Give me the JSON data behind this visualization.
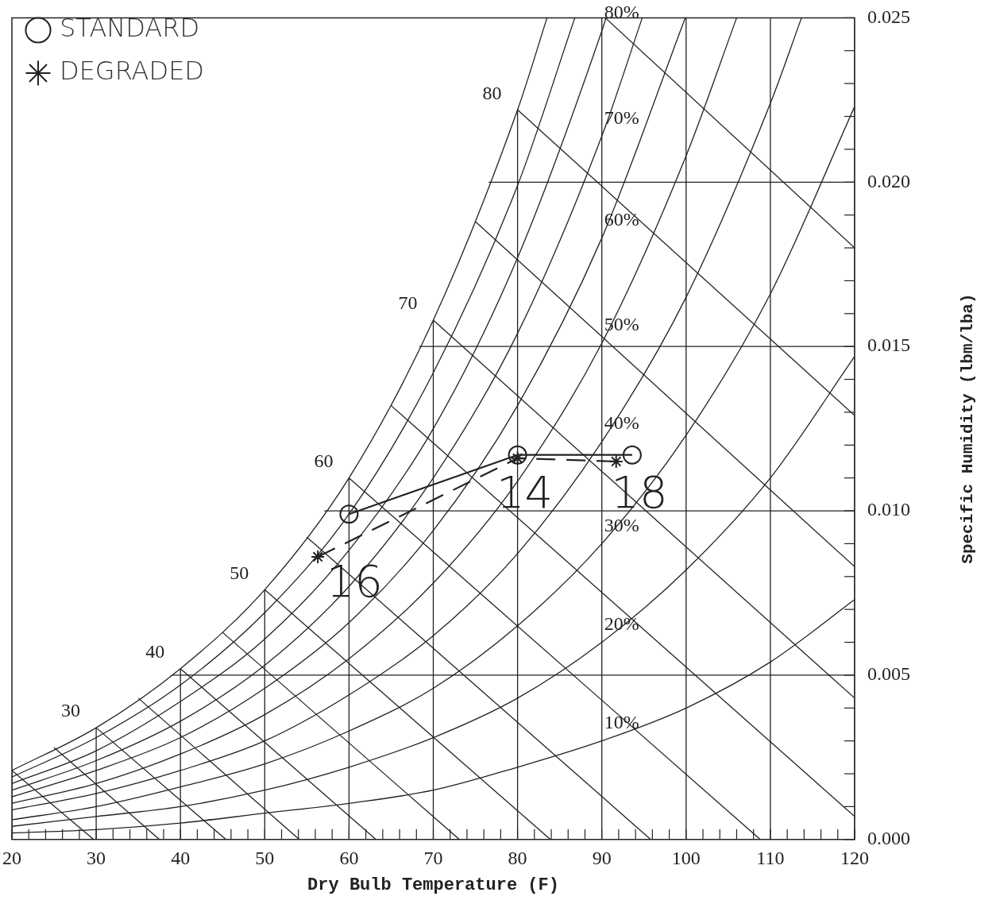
{
  "chart_data": {
    "type": "line",
    "xlabel": "Dry Bulb Temperature (F)",
    "ylabel": "Specific Humidity (lbm/lba)",
    "xlim": [
      20,
      120
    ],
    "ylim": [
      0,
      0.025
    ],
    "xticks": [
      20,
      {
        "value": 22,
        "label": null
      },
      {
        "value": 24,
        "label": null
      },
      {
        "value": 26,
        "label": null
      },
      {
        "value": 28,
        "label": null
      },
      30,
      {
        "value": 32,
        "label": null
      },
      {
        "value": 34,
        "label": null
      },
      {
        "value": 36,
        "label": null
      },
      {
        "value": 38,
        "label": null
      },
      40,
      {
        "value": 42,
        "label": null
      },
      {
        "value": 44,
        "label": null
      },
      {
        "value": 46,
        "label": null
      },
      {
        "value": 48,
        "label": null
      },
      50,
      {
        "value": 52,
        "label": null
      },
      {
        "value": 54,
        "label": null
      },
      {
        "value": 56,
        "label": null
      },
      {
        "value": 58,
        "label": null
      },
      60,
      {
        "value": 62,
        "label": null
      },
      {
        "value": 64,
        "label": null
      },
      {
        "value": 66,
        "label": null
      },
      {
        "value": 68,
        "label": null
      },
      70,
      {
        "value": 72,
        "label": null
      },
      {
        "value": 74,
        "label": null
      },
      {
        "value": 76,
        "label": null
      },
      {
        "value": 78,
        "label": null
      },
      80,
      {
        "value": 82,
        "label": null
      },
      {
        "value": 84,
        "label": null
      },
      {
        "value": 86,
        "label": null
      },
      {
        "value": 88,
        "label": null
      },
      90,
      {
        "value": 92,
        "label": null
      },
      {
        "value": 94,
        "label": null
      },
      {
        "value": 96,
        "label": null
      },
      {
        "value": 98,
        "label": null
      },
      100,
      {
        "value": 102,
        "label": null
      },
      {
        "value": 104,
        "label": null
      },
      {
        "value": 106,
        "label": null
      },
      {
        "value": 108,
        "label": null
      },
      110,
      {
        "value": 112,
        "label": null
      },
      {
        "value": 114,
        "label": null
      },
      {
        "value": 116,
        "label": null
      },
      {
        "value": 118,
        "label": null
      },
      120
    ],
    "yticks": [
      {
        "value": 0,
        "label": "0.000"
      },
      {
        "value": 0.001,
        "label": null
      },
      {
        "value": 0.002,
        "label": null
      },
      {
        "value": 0.003,
        "label": null
      },
      {
        "value": 0.004,
        "label": null
      },
      {
        "value": 0.005,
        "label": "0.005"
      },
      {
        "value": 0.006,
        "label": null
      },
      {
        "value": 0.007,
        "label": null
      },
      {
        "value": 0.008,
        "label": null
      },
      {
        "value": 0.009,
        "label": null
      },
      {
        "value": 0.01,
        "label": "0.010"
      },
      {
        "value": 0.011,
        "label": null
      },
      {
        "value": 0.012,
        "label": null
      },
      {
        "value": 0.013,
        "label": null
      },
      {
        "value": 0.014,
        "label": null
      },
      {
        "value": 0.015,
        "label": "0.015"
      },
      {
        "value": 0.016,
        "label": null
      },
      {
        "value": 0.017,
        "label": null
      },
      {
        "value": 0.018,
        "label": null
      },
      {
        "value": 0.019,
        "label": null
      },
      {
        "value": 0.02,
        "label": "0.020"
      },
      {
        "value": 0.021,
        "label": null
      },
      {
        "value": 0.022,
        "label": null
      },
      {
        "value": 0.023,
        "label": null
      },
      {
        "value": 0.024,
        "label": null
      },
      {
        "value": 0.025,
        "label": "0.025"
      }
    ],
    "grid": true,
    "legend": "top left",
    "marker": "none",
    "line_style": "solid",
    "series": [
      {
        "color": "#222222",
        "x": [
          20,
          30,
          40,
          50,
          60,
          70,
          80,
          83.5
        ],
        "values": [
          0.0021,
          0.0034,
          0.0052,
          0.0076,
          0.011,
          0.0158,
          0.0222,
          0.025
        ]
      },
      {
        "color": "#222222",
        "x": [
          20,
          30,
          40,
          50,
          60,
          70,
          80,
          86.8
        ],
        "values": [
          0.0019,
          0.0031,
          0.0047,
          0.0069,
          0.0099,
          0.0142,
          0.0199,
          0.025
        ]
      },
      {
        "color": "#222222",
        "x": [
          20,
          30,
          40,
          50,
          60,
          70,
          80,
          90,
          90.5
        ],
        "values": [
          0.0017,
          0.0027,
          0.0042,
          0.0061,
          0.0088,
          0.0125,
          0.0177,
          0.0246,
          0.025
        ]
      },
      {
        "color": "#222222",
        "x": [
          20,
          30,
          40,
          50,
          60,
          70,
          80,
          90,
          94.8
        ],
        "values": [
          0.0015,
          0.0024,
          0.0036,
          0.0053,
          0.0077,
          0.011,
          0.0154,
          0.0214,
          0.025
        ]
      },
      {
        "color": "#222222",
        "x": [
          20,
          30,
          40,
          50,
          60,
          70,
          80,
          90,
          99.9
        ],
        "values": [
          0.0013,
          0.0021,
          0.0031,
          0.0046,
          0.0066,
          0.0094,
          0.0132,
          0.0183,
          0.025
        ]
      },
      {
        "color": "#222222",
        "x": [
          20,
          30,
          40,
          50,
          60,
          70,
          80,
          90,
          100,
          106
        ],
        "values": [
          0.0011,
          0.0017,
          0.0026,
          0.0038,
          0.0055,
          0.0078,
          0.0109,
          0.0151,
          0.0208,
          0.025
        ]
      },
      {
        "color": "#222222",
        "x": [
          20,
          30,
          40,
          50,
          60,
          70,
          80,
          90,
          100,
          110,
          113.7
        ],
        "values": [
          0.0009,
          0.0014,
          0.0021,
          0.003,
          0.0044,
          0.0062,
          0.0087,
          0.0121,
          0.0165,
          0.0224,
          0.025
        ]
      },
      {
        "color": "#222222",
        "x": [
          20,
          30,
          40,
          50,
          60,
          70,
          80,
          90,
          100,
          110,
          120
        ],
        "values": [
          0.0006,
          0.001,
          0.0016,
          0.0023,
          0.0033,
          0.0046,
          0.0065,
          0.009,
          0.0123,
          0.0166,
          0.0223
        ]
      },
      {
        "color": "#222222",
        "x": [
          20,
          30,
          40,
          50,
          60,
          70,
          80,
          90,
          100,
          110,
          120
        ],
        "values": [
          0.0004,
          0.0007,
          0.001,
          0.0015,
          0.0022,
          0.0031,
          0.0043,
          0.006,
          0.0082,
          0.011,
          0.0147
        ]
      },
      {
        "color": "#222222",
        "x": [
          20,
          30,
          40,
          50,
          60,
          70,
          80,
          90,
          100,
          110,
          120
        ],
        "values": [
          0.0002,
          0.0003,
          0.0005,
          0.0008,
          0.0011,
          0.0015,
          0.0022,
          0.003,
          0.004,
          0.0054,
          0.0073
        ]
      },
      {
        "color": "#222222",
        "x": [
          20,
          29.7
        ],
        "values": [
          0.0021,
          0
        ]
      },
      {
        "color": "#222222",
        "x": [
          25,
          37.5
        ],
        "values": [
          0.0028,
          0
        ]
      },
      {
        "color": "#222222",
        "x": [
          30,
          45.4
        ],
        "values": [
          0.0034,
          0
        ]
      },
      {
        "color": "#222222",
        "x": [
          35,
          54.1
        ],
        "values": [
          0.0043,
          0
        ]
      },
      {
        "color": "#222222",
        "x": [
          40,
          63.2
        ],
        "values": [
          0.0052,
          0
        ]
      },
      {
        "color": "#222222",
        "x": [
          45,
          73.1
        ],
        "values": [
          0.0063,
          0
        ]
      },
      {
        "color": "#222222",
        "x": [
          50,
          83.9
        ],
        "values": [
          0.0076,
          0
        ]
      },
      {
        "color": "#222222",
        "x": [
          55,
          95.8
        ],
        "values": [
          0.0092,
          0
        ]
      },
      {
        "color": "#222222",
        "x": [
          60,
          108.8
        ],
        "values": [
          0.011,
          0
        ]
      },
      {
        "color": "#222222",
        "x": [
          65,
          120
        ],
        "values": [
          0.0132,
          0.0007
        ]
      },
      {
        "color": "#222222",
        "x": [
          70,
          120
        ],
        "values": [
          0.0158,
          0.0043
        ]
      },
      {
        "color": "#222222",
        "x": [
          75,
          120
        ],
        "values": [
          0.0188,
          0.0083
        ]
      },
      {
        "color": "#222222",
        "x": [
          80,
          120
        ],
        "values": [
          0.0222,
          0.0129
        ]
      },
      {
        "color": "#222222",
        "x": [
          90.4,
          120
        ],
        "values": [
          0.025,
          0.018
        ]
      },
      {
        "name": "STANDARD",
        "color": "#222222",
        "marker": "circle",
        "x": [
          60,
          80,
          93.6
        ],
        "values": [
          0.0099,
          0.0117,
          0.0117
        ]
      },
      {
        "name": "DEGRADED",
        "color": "#222222",
        "marker": "cross",
        "line_style": "dashed",
        "x": [
          56.3,
          80,
          91.7
        ],
        "values": [
          0.0086,
          0.0116,
          0.0115
        ]
      }
    ],
    "annotations": [
      {
        "text": "80%",
        "x": 90,
        "y": 0.0246
      },
      {
        "text": "70%",
        "x": 90,
        "y": 0.0214
      },
      {
        "text": "60%",
        "x": 90,
        "y": 0.0183
      },
      {
        "text": "50%",
        "x": 90,
        "y": 0.0151
      },
      {
        "text": "40%",
        "x": 90,
        "y": 0.0121
      },
      {
        "text": "30%",
        "x": 90,
        "y": 0.009
      },
      {
        "text": "20%",
        "x": 90,
        "y": 0.006
      },
      {
        "text": "10%",
        "x": 90,
        "y": 0.003
      },
      {
        "text": "30",
        "x": 30,
        "y": 0.0034
      },
      {
        "text": "40",
        "x": 40,
        "y": 0.0052
      },
      {
        "text": "50",
        "x": 50,
        "y": 0.0076
      },
      {
        "text": "60",
        "x": 60,
        "y": 0.011
      },
      {
        "text": "70",
        "x": 70,
        "y": 0.0158
      },
      {
        "text": "80",
        "x": 80,
        "y": 0.0222
      },
      {
        "text": "16",
        "x": 59.8,
        "y": 0.009
      },
      {
        "text": "14",
        "x": 80,
        "y": 0.0117
      },
      {
        "text": "18",
        "x": 93.6,
        "y": 0.0117
      }
    ]
  }
}
